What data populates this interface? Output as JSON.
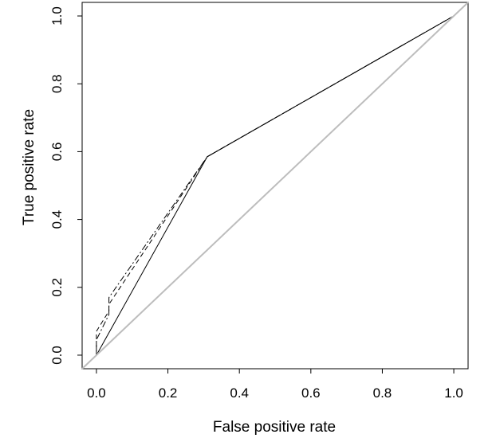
{
  "chart_data": {
    "type": "line",
    "title": "",
    "xlabel": "False positive rate",
    "ylabel": "True positive rate",
    "xlim": [
      -0.04,
      1.04
    ],
    "ylim": [
      -0.04,
      1.04
    ],
    "x_ticks": [
      0.0,
      0.2,
      0.4,
      0.6,
      0.8,
      1.0
    ],
    "y_ticks": [
      0.0,
      0.2,
      0.4,
      0.6,
      0.8,
      1.0
    ],
    "x_tick_labels": [
      "0.0",
      "0.2",
      "0.4",
      "0.6",
      "0.8",
      "1.0"
    ],
    "y_tick_labels": [
      "0.0",
      "0.2",
      "0.4",
      "0.6",
      "0.8",
      "1.0"
    ],
    "grid": false,
    "legend": "none",
    "series": [
      {
        "style": "solid",
        "color": "#000000",
        "x": [
          0.0,
          0.31,
          1.0
        ],
        "y": [
          0.0,
          0.585,
          1.0
        ]
      },
      {
        "style": "dashed",
        "color": "#000000",
        "x": [
          0.0,
          0.0,
          0.035,
          0.035,
          0.31,
          1.0
        ],
        "y": [
          0.0,
          0.07,
          0.13,
          0.15,
          0.585,
          1.0
        ]
      },
      {
        "style": "dotdash",
        "color": "#000000",
        "x": [
          0.0,
          0.0,
          0.035,
          0.035,
          0.31,
          1.0
        ],
        "y": [
          0.0,
          0.045,
          0.12,
          0.17,
          0.585,
          1.0
        ]
      },
      {
        "style": "reference",
        "color": "#bdbdbd",
        "x": [
          -0.04,
          1.04
        ],
        "y": [
          -0.04,
          1.04
        ]
      }
    ]
  }
}
